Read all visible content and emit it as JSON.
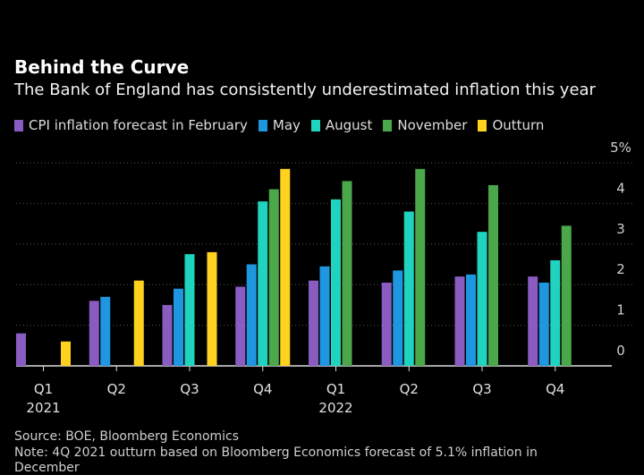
{
  "title": "Behind the Curve",
  "subtitle": "The Bank of England has consistently underestimated inflation this year",
  "colors": {
    "February": "#8a5cc2",
    "May": "#1e96e0",
    "August": "#1fd3bf",
    "November": "#4aa84a",
    "Outturn": "#ffd21f",
    "background": "#000000",
    "grid": "#555555"
  },
  "chart_data": {
    "type": "bar",
    "categories": [
      "Q1 2021",
      "Q2 2021",
      "Q3 2021",
      "Q4 2021",
      "Q1 2022",
      "Q2 2022",
      "Q3 2022",
      "Q4 2022"
    ],
    "x_tick_labels": [
      "Q1",
      "Q2",
      "Q3",
      "Q4",
      "Q1",
      "Q2",
      "Q3",
      "Q4"
    ],
    "year_labels": [
      {
        "text": "2021",
        "index": 0
      },
      {
        "text": "2022",
        "index": 4
      }
    ],
    "series": [
      {
        "name": "CPI inflation forecast in February",
        "color_key": "February",
        "values": [
          0.8,
          1.6,
          1.5,
          1.95,
          2.1,
          2.05,
          2.2,
          2.2
        ]
      },
      {
        "name": "May",
        "color_key": "May",
        "values": [
          null,
          1.7,
          1.9,
          2.5,
          2.45,
          2.35,
          2.25,
          2.05
        ]
      },
      {
        "name": "August",
        "color_key": "August",
        "values": [
          null,
          null,
          2.75,
          4.05,
          4.1,
          3.8,
          3.3,
          2.6
        ]
      },
      {
        "name": "November",
        "color_key": "November",
        "values": [
          null,
          null,
          null,
          4.35,
          4.55,
          4.85,
          4.45,
          3.45
        ]
      },
      {
        "name": "Outturn",
        "color_key": "Outturn",
        "values": [
          0.6,
          2.1,
          2.8,
          4.85,
          null,
          null,
          null,
          null
        ]
      }
    ],
    "y_ticks": [
      0,
      1,
      2,
      3,
      4,
      5
    ],
    "y_tick_labels": [
      "0",
      "1",
      "2",
      "3",
      "4",
      "5%"
    ],
    "ylim": [
      0,
      5
    ],
    "grid": true,
    "legend_position": "top"
  },
  "footer": {
    "source": "Source: BOE, Bloomberg Economics",
    "note": "Note: 4Q 2021 outturn based on Bloomberg Economics forecast of 5.1% inflation in",
    "note_cont": "December"
  }
}
